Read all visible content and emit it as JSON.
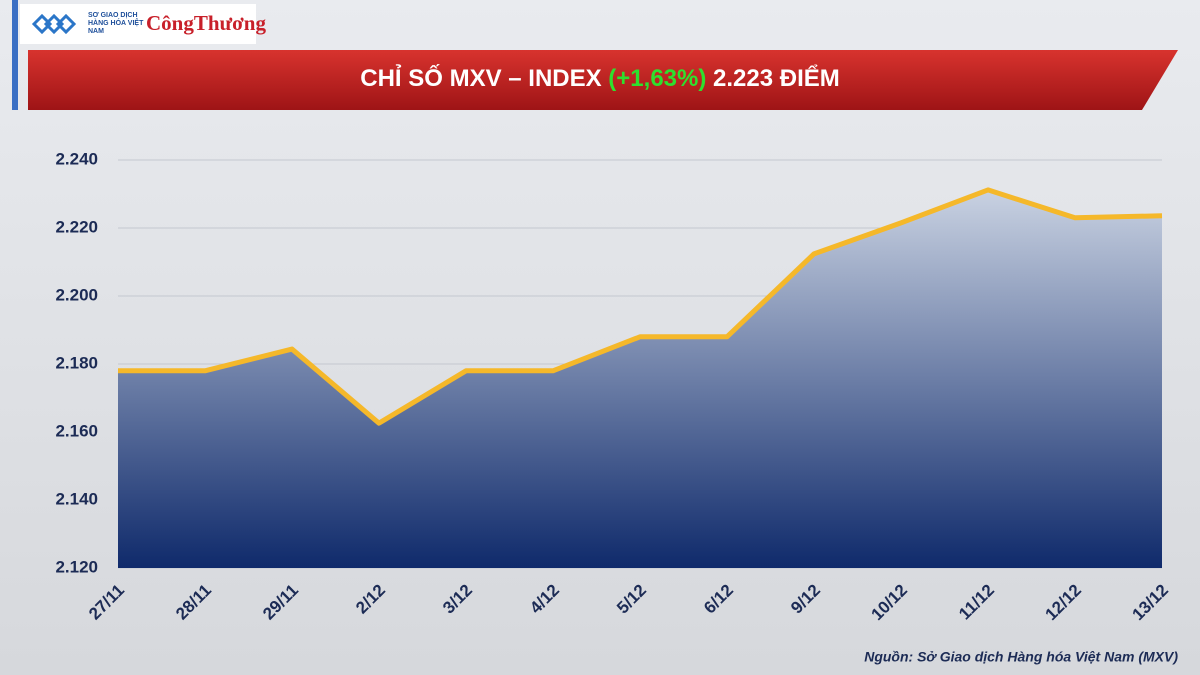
{
  "header": {
    "logo_text": "SỞ GIAO DỊCH HÀNG HÓA VIỆT NAM",
    "brand": "CôngThương"
  },
  "chart_data": {
    "type": "area",
    "title": "CHỈ SỐ MXV – INDEX",
    "title_change": "(+1,63%)",
    "title_value": "2.223 ĐIỂM",
    "title_change_color": "#2ee02e",
    "categories": [
      "27/11",
      "28/11",
      "29/11",
      "2/12",
      "3/12",
      "4/12",
      "5/12",
      "6/12",
      "9/12",
      "10/12",
      "11/12",
      "12/12",
      "13/12"
    ],
    "values": [
      2178,
      2178,
      2184.4,
      2162.6,
      2178,
      2178,
      2188,
      2188,
      2212.4,
      2221.5,
      2231.2,
      2223,
      2223.6
    ],
    "color": "#f5b82a",
    "area_top_color": "#c9d2e2",
    "area_bottom_color": "#0f2a6b",
    "ylim": [
      2120,
      2250
    ],
    "yticks": [
      {
        "value": 2120,
        "label": "2.120"
      },
      {
        "value": 2140,
        "label": "2.140"
      },
      {
        "value": 2160,
        "label": "2.160"
      },
      {
        "value": 2180,
        "label": "2.180"
      },
      {
        "value": 2200,
        "label": "2.200"
      },
      {
        "value": 2220,
        "label": "2.220"
      },
      {
        "value": 2240,
        "label": "2.240"
      }
    ],
    "grid": true,
    "source": "Nguồn: Sở Giao dịch Hàng hóa Việt Nam (MXV)"
  }
}
